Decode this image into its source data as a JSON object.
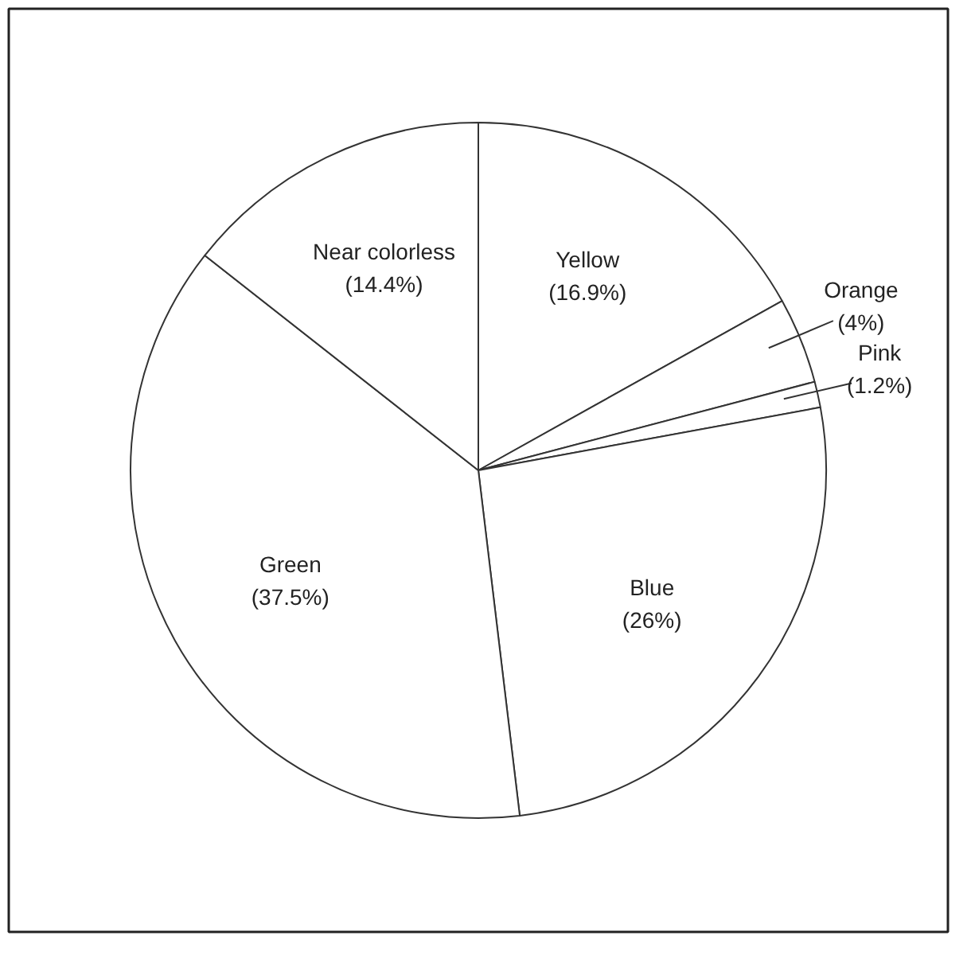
{
  "chart_data": {
    "type": "pie",
    "categories": [
      "Yellow",
      "Orange",
      "Pink",
      "Blue",
      "Green",
      "Near colorless"
    ],
    "values": [
      16.9,
      4,
      1.2,
      26,
      37.5,
      14.4
    ],
    "colors": [
      "#ffffff",
      "#ffffff",
      "#ffffff",
      "#ffffff",
      "#ffffff",
      "#ffffff"
    ],
    "value_labels": [
      "(16.9%)",
      "(4%)",
      "(1.2%)",
      "(26%)",
      "(37.5%)",
      "(14.4%)"
    ]
  }
}
